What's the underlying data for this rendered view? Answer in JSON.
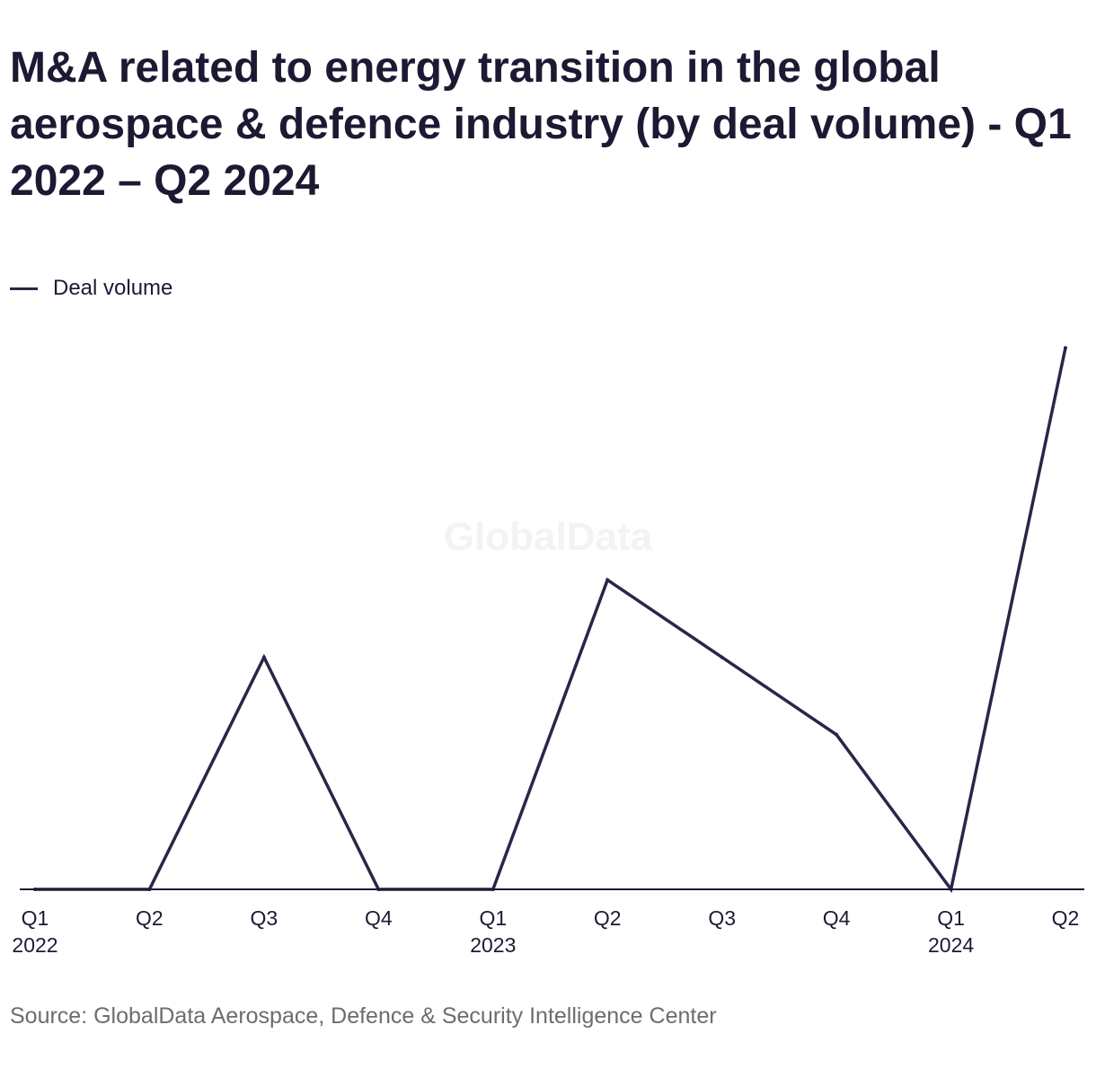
{
  "title": "M&A related to energy transition in the global aerospace & defence industry (by deal volume) - Q1 2022 – Q2 2024",
  "source": "Source: GlobalData Aerospace, Defence & Security Intelligence Center",
  "watermark": "GlobalData",
  "colors": {
    "series": "#2e2348",
    "axis": "#1c1a33",
    "text": "#1c1a33",
    "source_text": "#6d6d6d"
  },
  "chart_data": {
    "type": "line",
    "categories": [
      "Q1 2022",
      "Q2 2022",
      "Q3 2022",
      "Q4 2022",
      "Q1 2023",
      "Q2 2023",
      "Q3 2023",
      "Q4 2023",
      "Q1 2024",
      "Q2 2024"
    ],
    "tick_labels": [
      {
        "quarter": "Q1",
        "year": "2022"
      },
      {
        "quarter": "Q2",
        "year": ""
      },
      {
        "quarter": "Q3",
        "year": ""
      },
      {
        "quarter": "Q4",
        "year": ""
      },
      {
        "quarter": "Q1",
        "year": "2023"
      },
      {
        "quarter": "Q2",
        "year": ""
      },
      {
        "quarter": "Q3",
        "year": ""
      },
      {
        "quarter": "Q4",
        "year": ""
      },
      {
        "quarter": "Q1",
        "year": "2024"
      },
      {
        "quarter": "Q2",
        "year": ""
      }
    ],
    "series": [
      {
        "name": "Deal volume",
        "values": [
          0,
          0,
          3,
          0,
          0,
          4,
          3,
          2,
          0,
          7
        ]
      }
    ],
    "ylim": [
      0,
      7.2
    ],
    "y_axis_labels_shown": false,
    "grid": false,
    "legend_position": "top-left"
  }
}
